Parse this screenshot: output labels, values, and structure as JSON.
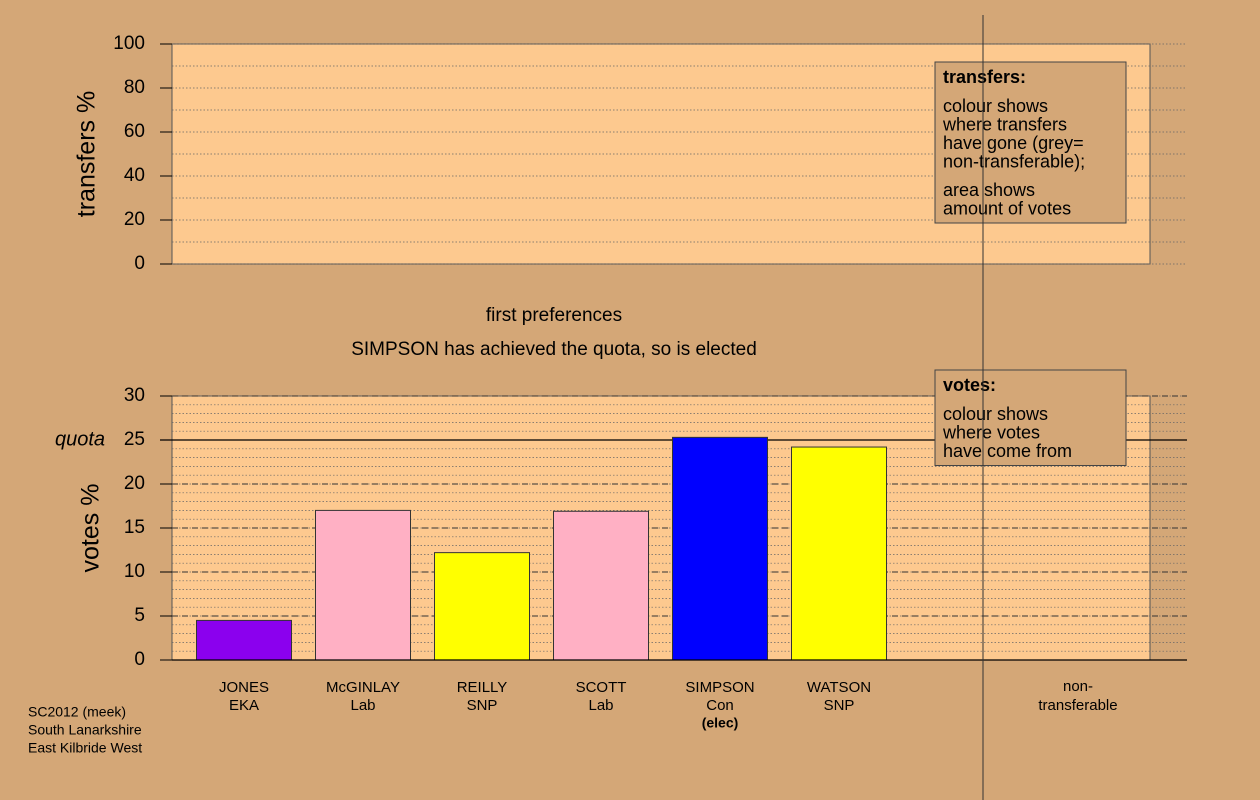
{
  "chart_data": [
    {
      "type": "bar",
      "ylabel": "transfers %",
      "ylim": [
        0,
        100
      ],
      "yticks": [
        0,
        20,
        40,
        60,
        80,
        100
      ],
      "minor_step": 10,
      "categories": [],
      "values": [],
      "legend": {
        "title": "transfers:",
        "paragraphs": [
          [
            "colour shows",
            "where transfers",
            "have gone (grey=",
            "non-transferable);"
          ],
          [
            "area shows",
            "amount of votes"
          ]
        ]
      }
    },
    {
      "type": "bar",
      "title": "first preferences",
      "subtitle": "SIMPSON has achieved the quota, so is elected",
      "ylabel": "votes %",
      "ylim": [
        0,
        30
      ],
      "yticks": [
        0,
        5,
        10,
        15,
        20,
        25,
        30
      ],
      "minor_step": 1,
      "quota": 25,
      "quota_label": "quota",
      "categories": [
        "JONES",
        "McGINLAY",
        "REILLY",
        "SCOTT",
        "SIMPSON",
        "WATSON"
      ],
      "parties": [
        "EKA",
        "Lab",
        "SNP",
        "Lab",
        "Con",
        "SNP"
      ],
      "values": [
        4.5,
        17.0,
        12.2,
        16.9,
        25.3,
        24.2
      ],
      "colors": [
        "#8b00ee",
        "#ffb0c4",
        "#ffff00",
        "#ffb0c4",
        "#0000ff",
        "#ffff00"
      ],
      "annotations": [
        {
          "text": "(elec)",
          "category": "SIMPSON"
        }
      ],
      "nontransferable_label": [
        "non-",
        "transferable"
      ],
      "legend": {
        "title": "votes:",
        "paragraphs": [
          [
            "colour shows",
            "where votes",
            "have come from"
          ]
        ]
      }
    }
  ],
  "footer": [
    "SC2012 (meek)",
    "South Lanarkshire",
    "East Kilbride West"
  ]
}
